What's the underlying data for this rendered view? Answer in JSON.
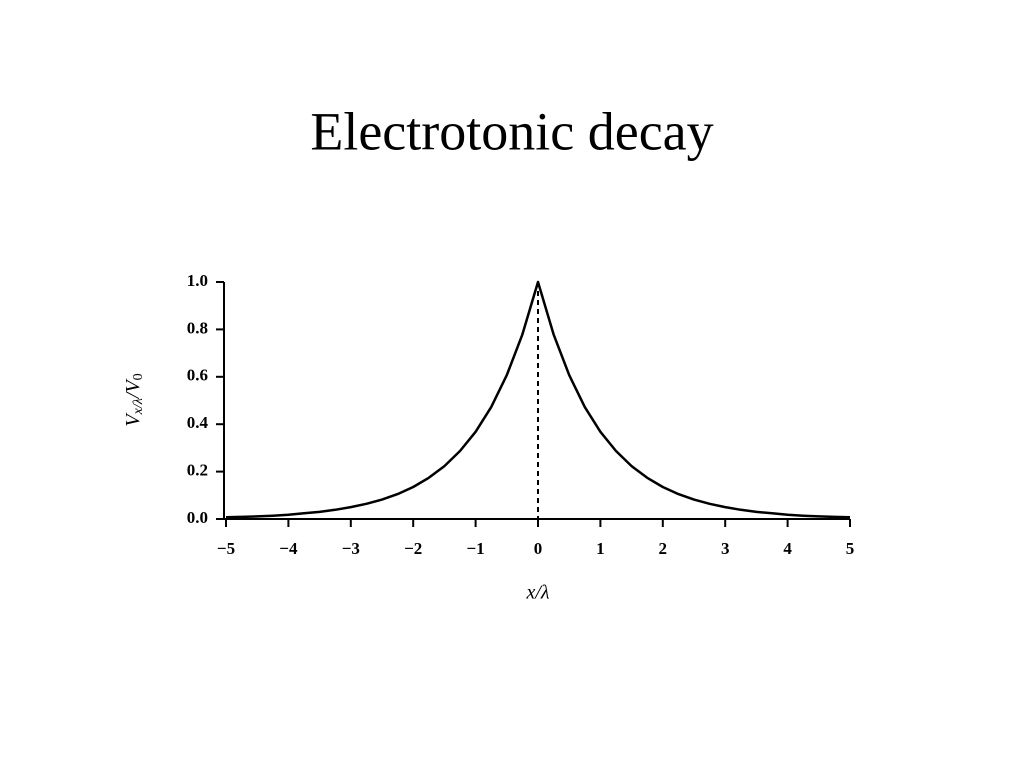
{
  "chart_data": {
    "type": "line",
    "title": "Electrotonic decay",
    "x_label": "x/λ",
    "y_label": [
      "V",
      "x/λ",
      "/V",
      "0"
    ],
    "x": [
      -5,
      -4.75,
      -4.5,
      -4.25,
      -4,
      -3.75,
      -3.5,
      -3.25,
      -3,
      -2.75,
      -2.5,
      -2.25,
      -2,
      -1.75,
      -1.5,
      -1.25,
      -1,
      -0.75,
      -0.5,
      -0.25,
      0,
      0.25,
      0.5,
      0.75,
      1,
      1.25,
      1.5,
      1.75,
      2,
      2.25,
      2.5,
      2.75,
      3,
      3.25,
      3.5,
      3.75,
      4,
      4.25,
      4.5,
      4.75,
      5
    ],
    "values": [
      0.007,
      0.009,
      0.011,
      0.014,
      0.018,
      0.024,
      0.03,
      0.039,
      0.05,
      0.064,
      0.082,
      0.105,
      0.135,
      0.174,
      0.223,
      0.287,
      0.368,
      0.472,
      0.607,
      0.779,
      1,
      0.779,
      0.607,
      0.472,
      0.368,
      0.287,
      0.223,
      0.174,
      0.135,
      0.105,
      0.082,
      0.064,
      0.05,
      0.039,
      0.03,
      0.024,
      0.018,
      0.014,
      0.011,
      0.009,
      0.007
    ],
    "color": "#000000",
    "reference_x": 0,
    "xlim": [
      -5,
      5
    ],
    "ylim": [
      0,
      1
    ],
    "xticks": [
      {
        "value": -5,
        "label": "−5"
      },
      {
        "value": -4,
        "label": "−4"
      },
      {
        "value": -3,
        "label": "−3"
      },
      {
        "value": -2,
        "label": "−2"
      },
      {
        "value": -1,
        "label": "−1"
      },
      0,
      1,
      2,
      3,
      4,
      5
    ],
    "yticks": [
      {
        "value": 0,
        "label": "0.0"
      },
      0.2,
      0.4,
      0.6,
      0.8,
      {
        "value": 1,
        "label": "1.0"
      }
    ]
  }
}
